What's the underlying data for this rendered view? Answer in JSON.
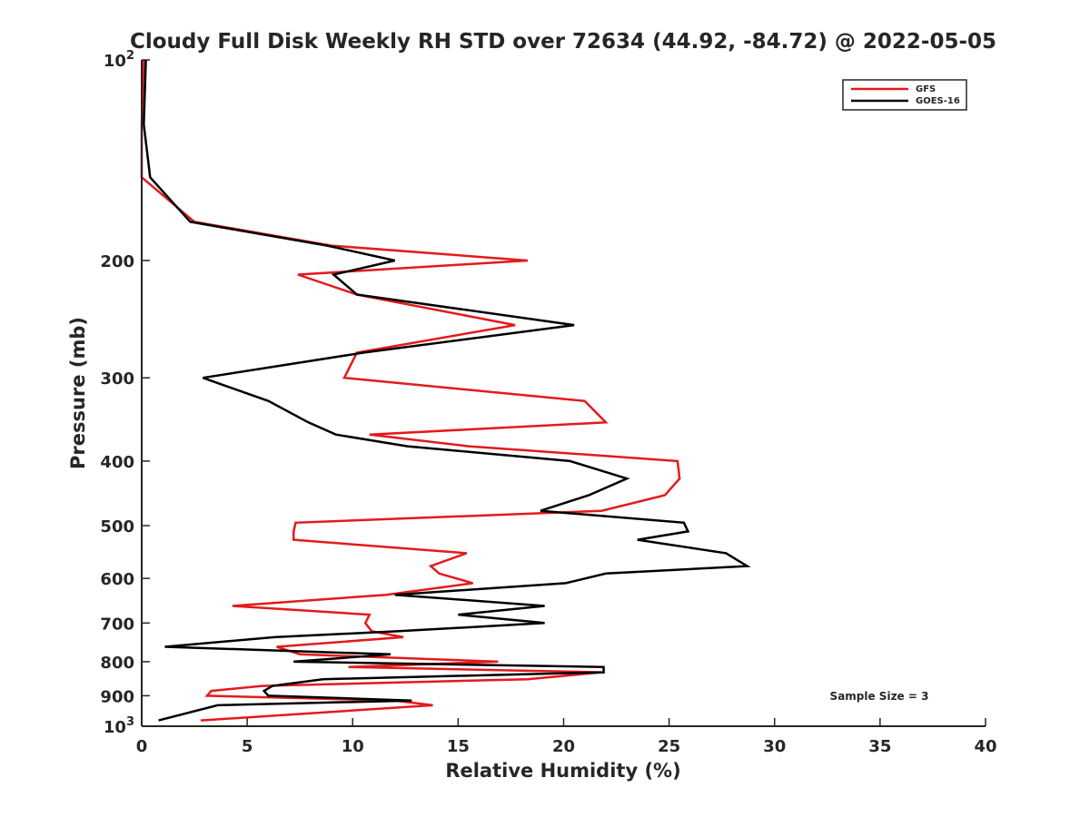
{
  "chart_data": {
    "type": "line",
    "title": "Cloudy Full Disk Weekly RH STD over 72634 (44.92, -84.72) @ 2022-05-05",
    "xlabel": "Relative Humidity (%)",
    "ylabel": "Pressure (mb)",
    "xlim": [
      0,
      40
    ],
    "ylim": [
      100,
      1000
    ],
    "y_scale": "log",
    "y_reversed": true,
    "grid": false,
    "legend_position": "top-right",
    "x_ticks": [
      "0",
      "5",
      "10",
      "15",
      "20",
      "25",
      "30",
      "35",
      "40"
    ],
    "y_ticks": [
      {
        "value": 100,
        "base": "10",
        "exp": "2"
      },
      {
        "value": 200,
        "label": "200"
      },
      {
        "value": 300,
        "label": "300"
      },
      {
        "value": 400,
        "label": "400"
      },
      {
        "value": 500,
        "label": "500"
      },
      {
        "value": 600,
        "label": "600"
      },
      {
        "value": 700,
        "label": "700"
      },
      {
        "value": 800,
        "label": "800"
      },
      {
        "value": 900,
        "label": "900"
      },
      {
        "value": 1000,
        "base": "10",
        "exp": "3"
      }
    ],
    "annotation": "Sample Size = 3",
    "series": [
      {
        "name": "GFS",
        "color": "#e41a1c",
        "points": [
          [
            0.1,
            100
          ],
          [
            0.0,
            125
          ],
          [
            0.0,
            150
          ],
          [
            2.5,
            175
          ],
          [
            9.0,
            190
          ],
          [
            18.3,
            200
          ],
          [
            7.4,
            210
          ],
          [
            10.2,
            225
          ],
          [
            17.7,
            250
          ],
          [
            10.2,
            275
          ],
          [
            9.6,
            300
          ],
          [
            21.0,
            325
          ],
          [
            22.0,
            350
          ],
          [
            10.8,
            365
          ],
          [
            15.5,
            380
          ],
          [
            25.4,
            400
          ],
          [
            25.5,
            425
          ],
          [
            24.8,
            450
          ],
          [
            21.8,
            475
          ],
          [
            7.3,
            495
          ],
          [
            7.2,
            510
          ],
          [
            7.2,
            525
          ],
          [
            15.4,
            550
          ],
          [
            13.7,
            575
          ],
          [
            14.1,
            590
          ],
          [
            15.7,
            610
          ],
          [
            11.6,
            635
          ],
          [
            4.3,
            660
          ],
          [
            10.8,
            680
          ],
          [
            10.6,
            700
          ],
          [
            10.9,
            720
          ],
          [
            12.4,
            735
          ],
          [
            6.4,
            760
          ],
          [
            7.5,
            780
          ],
          [
            16.9,
            800
          ],
          [
            9.8,
            815
          ],
          [
            21.8,
            830
          ],
          [
            18.3,
            850
          ],
          [
            5.7,
            870
          ],
          [
            3.3,
            885
          ],
          [
            3.1,
            900
          ],
          [
            12.0,
            915
          ],
          [
            13.8,
            930
          ],
          [
            2.8,
            980
          ]
        ]
      },
      {
        "name": "GOES-16",
        "color": "#000000",
        "points": [
          [
            0.2,
            100
          ],
          [
            0.1,
            125
          ],
          [
            0.4,
            150
          ],
          [
            2.3,
            175
          ],
          [
            8.8,
            190
          ],
          [
            12.0,
            200
          ],
          [
            9.1,
            210
          ],
          [
            10.2,
            225
          ],
          [
            20.5,
            250
          ],
          [
            10.5,
            275
          ],
          [
            2.9,
            300
          ],
          [
            6.0,
            325
          ],
          [
            7.9,
            350
          ],
          [
            9.2,
            365
          ],
          [
            12.6,
            380
          ],
          [
            20.3,
            400
          ],
          [
            23.0,
            425
          ],
          [
            21.2,
            450
          ],
          [
            18.9,
            475
          ],
          [
            25.7,
            495
          ],
          [
            25.9,
            510
          ],
          [
            23.5,
            525
          ],
          [
            27.7,
            550
          ],
          [
            28.7,
            575
          ],
          [
            22.0,
            590
          ],
          [
            20.1,
            610
          ],
          [
            12.0,
            635
          ],
          [
            19.1,
            660
          ],
          [
            15.0,
            680
          ],
          [
            19.1,
            700
          ],
          [
            12.2,
            720
          ],
          [
            6.3,
            735
          ],
          [
            1.1,
            760
          ],
          [
            11.8,
            780
          ],
          [
            7.2,
            800
          ],
          [
            21.9,
            815
          ],
          [
            21.9,
            830
          ],
          [
            8.6,
            850
          ],
          [
            6.2,
            870
          ],
          [
            5.8,
            885
          ],
          [
            6.0,
            900
          ],
          [
            12.8,
            915
          ],
          [
            3.6,
            930
          ],
          [
            0.8,
            980
          ]
        ]
      }
    ]
  }
}
